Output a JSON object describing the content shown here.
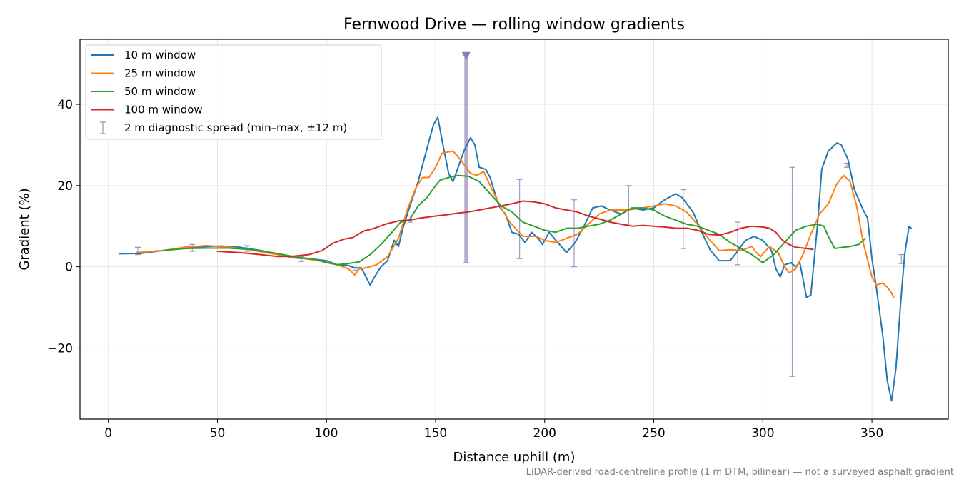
{
  "chart_data": {
    "type": "line",
    "title": "Fernwood Drive — rolling window gradients",
    "xlabel": "Distance uphill (m)",
    "ylabel": "Gradient (%)",
    "xlim": [
      -13,
      385
    ],
    "ylim": [
      -37.5,
      56
    ],
    "xticks": [
      0,
      50,
      100,
      150,
      200,
      250,
      300,
      350
    ],
    "yticks": [
      -20,
      0,
      20,
      40
    ],
    "xtick_labels": [
      "0",
      "50",
      "100",
      "150",
      "200",
      "250",
      "300",
      "350"
    ],
    "ytick_labels": [
      "−20",
      "0",
      "20",
      "40"
    ],
    "grid": true,
    "legend_position": "upper left",
    "footnote": "LiDAR-derived road-centreline profile (1 m DTM, bilinear) — not a surveyed asphalt gradient",
    "series": [
      {
        "name": "10 m window",
        "color": "#1f77b4",
        "points": [
          [
            5,
            3.2
          ],
          [
            15,
            3.3
          ],
          [
            25,
            4.0
          ],
          [
            35,
            4.6
          ],
          [
            45,
            5.0
          ],
          [
            52,
            5.1
          ],
          [
            60,
            4.8
          ],
          [
            70,
            4.0
          ],
          [
            78,
            3.0
          ],
          [
            85,
            2.2
          ],
          [
            95,
            1.8
          ],
          [
            100,
            1.5
          ],
          [
            105,
            0.5
          ],
          [
            110,
            0.3
          ],
          [
            113,
            -0.3
          ],
          [
            116,
            -0.3
          ],
          [
            120,
            -4.5
          ],
          [
            122,
            -2.5
          ],
          [
            125,
            0.0
          ],
          [
            128,
            1.5
          ],
          [
            131,
            6.5
          ],
          [
            133,
            5.0
          ],
          [
            135,
            9.5
          ],
          [
            138,
            14.5
          ],
          [
            142,
            21.0
          ],
          [
            146,
            29.0
          ],
          [
            149,
            35.0
          ],
          [
            151,
            36.8
          ],
          [
            153,
            31.0
          ],
          [
            156,
            23.0
          ],
          [
            158,
            21.0
          ],
          [
            160,
            24.0
          ],
          [
            163,
            28.5
          ],
          [
            166,
            31.8
          ],
          [
            168,
            30.0
          ],
          [
            170,
            24.5
          ],
          [
            173,
            24.0
          ],
          [
            175,
            22.0
          ],
          [
            179,
            15.0
          ],
          [
            182,
            13.0
          ],
          [
            185,
            8.5
          ],
          [
            188,
            8.0
          ],
          [
            191,
            6.0
          ],
          [
            194,
            8.5
          ],
          [
            197,
            7.0
          ],
          [
            199,
            5.5
          ],
          [
            202,
            8.5
          ],
          [
            206,
            6.0
          ],
          [
            210,
            3.5
          ],
          [
            214,
            6.0
          ],
          [
            218,
            10.0
          ],
          [
            222,
            14.5
          ],
          [
            226,
            15.0
          ],
          [
            230,
            14.0
          ],
          [
            235,
            13.0
          ],
          [
            240,
            14.5
          ],
          [
            245,
            14.0
          ],
          [
            250,
            14.5
          ],
          [
            255,
            16.5
          ],
          [
            260,
            18.0
          ],
          [
            263,
            17.0
          ],
          [
            268,
            13.5
          ],
          [
            272,
            8.5
          ],
          [
            276,
            4.0
          ],
          [
            280,
            1.5
          ],
          [
            285,
            1.5
          ],
          [
            288,
            3.5
          ],
          [
            292,
            6.5
          ],
          [
            296,
            7.5
          ],
          [
            300,
            6.5
          ],
          [
            304,
            4.0
          ],
          [
            306,
            -0.5
          ],
          [
            308,
            -2.5
          ],
          [
            310,
            0.5
          ],
          [
            313,
            1.0
          ],
          [
            315,
            0.0
          ],
          [
            317,
            1.0
          ],
          [
            320,
            -7.5
          ],
          [
            322,
            -7.0
          ],
          [
            325,
            10.0
          ],
          [
            327,
            24.0
          ],
          [
            330,
            28.5
          ],
          [
            334,
            30.5
          ],
          [
            336,
            30.0
          ],
          [
            339,
            26.5
          ],
          [
            342,
            19.0
          ],
          [
            346,
            14.0
          ],
          [
            348,
            12.0
          ],
          [
            350,
            2.0
          ],
          [
            352,
            -5.0
          ],
          [
            355,
            -17.0
          ],
          [
            357,
            -28.0
          ],
          [
            359,
            -33.0
          ],
          [
            361,
            -25.0
          ],
          [
            363,
            -10.0
          ],
          [
            365,
            3.0
          ],
          [
            367,
            10.0
          ],
          [
            368,
            9.5
          ]
        ]
      },
      {
        "name": "25 m window",
        "color": "#ff7f0e",
        "points": [
          [
            13,
            3.5
          ],
          [
            25,
            4.0
          ],
          [
            35,
            4.8
          ],
          [
            45,
            5.2
          ],
          [
            55,
            4.8
          ],
          [
            65,
            4.2
          ],
          [
            75,
            3.2
          ],
          [
            85,
            2.4
          ],
          [
            95,
            1.6
          ],
          [
            100,
            1.2
          ],
          [
            105,
            0.5
          ],
          [
            110,
            -0.5
          ],
          [
            113,
            -2.0
          ],
          [
            115,
            -0.5
          ],
          [
            118,
            -0.3
          ],
          [
            123,
            0.5
          ],
          [
            128,
            2.5
          ],
          [
            133,
            7.0
          ],
          [
            137,
            14.0
          ],
          [
            141,
            19.5
          ],
          [
            144,
            22.0
          ],
          [
            147,
            22.0
          ],
          [
            150,
            24.5
          ],
          [
            153,
            28.0
          ],
          [
            158,
            28.5
          ],
          [
            162,
            26.0
          ],
          [
            166,
            23.0
          ],
          [
            169,
            22.5
          ],
          [
            172,
            23.5
          ],
          [
            175,
            20.0
          ],
          [
            180,
            14.5
          ],
          [
            184,
            11.0
          ],
          [
            190,
            7.5
          ],
          [
            196,
            7.5
          ],
          [
            200,
            6.5
          ],
          [
            205,
            6.0
          ],
          [
            210,
            7.0
          ],
          [
            215,
            8.0
          ],
          [
            220,
            10.5
          ],
          [
            225,
            13.0
          ],
          [
            230,
            14.0
          ],
          [
            238,
            14.0
          ],
          [
            245,
            14.5
          ],
          [
            250,
            15.0
          ],
          [
            255,
            15.5
          ],
          [
            260,
            15.0
          ],
          [
            265,
            13.5
          ],
          [
            270,
            10.5
          ],
          [
            275,
            7.0
          ],
          [
            280,
            4.0
          ],
          [
            285,
            4.2
          ],
          [
            290,
            4.0
          ],
          [
            295,
            5.0
          ],
          [
            297,
            3.5
          ],
          [
            299,
            2.5
          ],
          [
            303,
            5.0
          ],
          [
            307,
            3.5
          ],
          [
            310,
            0.0
          ],
          [
            312,
            -1.5
          ],
          [
            315,
            -0.5
          ],
          [
            318,
            2.5
          ],
          [
            322,
            8.0
          ],
          [
            326,
            13.0
          ],
          [
            330,
            15.5
          ],
          [
            334,
            20.5
          ],
          [
            337,
            22.5
          ],
          [
            340,
            21.0
          ],
          [
            343,
            15.0
          ],
          [
            346,
            6.0
          ],
          [
            350,
            -2.5
          ],
          [
            352,
            -4.5
          ],
          [
            355,
            -4.0
          ],
          [
            357,
            -5.0
          ],
          [
            359,
            -6.5
          ],
          [
            360,
            -7.5
          ]
        ]
      },
      {
        "name": "50 m window",
        "color": "#2ca02c",
        "points": [
          [
            25,
            4.0
          ],
          [
            35,
            4.5
          ],
          [
            45,
            4.6
          ],
          [
            55,
            4.6
          ],
          [
            65,
            4.3
          ],
          [
            75,
            3.5
          ],
          [
            85,
            2.5
          ],
          [
            95,
            1.8
          ],
          [
            100,
            1.0
          ],
          [
            105,
            0.5
          ],
          [
            110,
            0.8
          ],
          [
            115,
            1.2
          ],
          [
            120,
            3.0
          ],
          [
            125,
            5.5
          ],
          [
            130,
            8.5
          ],
          [
            134,
            11.0
          ],
          [
            138,
            11.5
          ],
          [
            142,
            15.0
          ],
          [
            146,
            17.0
          ],
          [
            150,
            20.0
          ],
          [
            152,
            21.3
          ],
          [
            156,
            22.0
          ],
          [
            160,
            22.5
          ],
          [
            165,
            22.3
          ],
          [
            170,
            21.0
          ],
          [
            175,
            18.0
          ],
          [
            180,
            15.0
          ],
          [
            185,
            13.5
          ],
          [
            190,
            11.0
          ],
          [
            195,
            10.0
          ],
          [
            200,
            9.0
          ],
          [
            205,
            8.5
          ],
          [
            210,
            9.5
          ],
          [
            215,
            9.5
          ],
          [
            220,
            10.0
          ],
          [
            225,
            10.5
          ],
          [
            230,
            11.5
          ],
          [
            235,
            13.0
          ],
          [
            240,
            14.5
          ],
          [
            245,
            14.5
          ],
          [
            250,
            14.0
          ],
          [
            255,
            12.5
          ],
          [
            260,
            11.5
          ],
          [
            265,
            10.5
          ],
          [
            270,
            10.0
          ],
          [
            275,
            9.0
          ],
          [
            280,
            8.0
          ],
          [
            285,
            6.0
          ],
          [
            290,
            4.5
          ],
          [
            295,
            3.0
          ],
          [
            300,
            1.0
          ],
          [
            305,
            3.0
          ],
          [
            310,
            6.0
          ],
          [
            315,
            9.0
          ],
          [
            320,
            10.0
          ],
          [
            325,
            10.5
          ],
          [
            328,
            10.0
          ],
          [
            330,
            7.5
          ],
          [
            333,
            4.5
          ],
          [
            337,
            4.8
          ],
          [
            340,
            5.0
          ],
          [
            344,
            5.5
          ],
          [
            347,
            7.0
          ]
        ]
      },
      {
        "name": "100 m window",
        "color": "#d62728",
        "points": [
          [
            50,
            3.8
          ],
          [
            60,
            3.5
          ],
          [
            70,
            3.0
          ],
          [
            78,
            2.5
          ],
          [
            85,
            2.6
          ],
          [
            92,
            3.0
          ],
          [
            98,
            4.0
          ],
          [
            103,
            5.8
          ],
          [
            108,
            6.8
          ],
          [
            112,
            7.2
          ],
          [
            117,
            8.8
          ],
          [
            122,
            9.5
          ],
          [
            127,
            10.5
          ],
          [
            133,
            11.3
          ],
          [
            138,
            11.5
          ],
          [
            143,
            12.0
          ],
          [
            150,
            12.5
          ],
          [
            155,
            12.8
          ],
          [
            160,
            13.2
          ],
          [
            165,
            13.5
          ],
          [
            170,
            14.0
          ],
          [
            175,
            14.5
          ],
          [
            180,
            15.0
          ],
          [
            185,
            15.5
          ],
          [
            190,
            16.2
          ],
          [
            195,
            16.0
          ],
          [
            200,
            15.5
          ],
          [
            205,
            14.5
          ],
          [
            210,
            14.0
          ],
          [
            215,
            13.5
          ],
          [
            220,
            12.5
          ],
          [
            225,
            11.8
          ],
          [
            230,
            11.0
          ],
          [
            235,
            10.5
          ],
          [
            240,
            10.0
          ],
          [
            245,
            10.2
          ],
          [
            250,
            10.0
          ],
          [
            255,
            9.8
          ],
          [
            260,
            9.5
          ],
          [
            265,
            9.5
          ],
          [
            270,
            9.0
          ],
          [
            275,
            8.0
          ],
          [
            280,
            7.8
          ],
          [
            285,
            8.5
          ],
          [
            290,
            9.5
          ],
          [
            295,
            10.0
          ],
          [
            300,
            9.8
          ],
          [
            303,
            9.5
          ],
          [
            306,
            8.5
          ],
          [
            309,
            6.5
          ],
          [
            312,
            5.5
          ],
          [
            315,
            4.8
          ],
          [
            320,
            4.5
          ],
          [
            323,
            4.3
          ]
        ]
      }
    ],
    "errorbars": {
      "name": "2 m diagnostic spread (min–max, ±12 m)",
      "color": "#9b8fbf",
      "points": [
        {
          "x": 13.5,
          "low": 3.0,
          "high": 4.8
        },
        {
          "x": 38.5,
          "low": 3.8,
          "high": 5.5
        },
        {
          "x": 63.5,
          "low": 3.8,
          "high": 5.2
        },
        {
          "x": 88.5,
          "low": 1.3,
          "high": 2.5
        },
        {
          "x": 113.5,
          "low": -0.8,
          "high": 1.0
        },
        {
          "x": 138.5,
          "low": 11.0,
          "high": 12.5
        },
        {
          "x": 164,
          "low": 1.0,
          "high": 52.0,
          "clipped": true
        },
        {
          "x": 188.5,
          "low": 2.0,
          "high": 21.5
        },
        {
          "x": 213.5,
          "low": 0.0,
          "high": 16.5
        },
        {
          "x": 238.5,
          "low": 10.5,
          "high": 20.0
        },
        {
          "x": 263.5,
          "low": 4.5,
          "high": 19.0
        },
        {
          "x": 288.5,
          "low": 0.5,
          "high": 11.0
        },
        {
          "x": 313.5,
          "low": -27.0,
          "high": 24.5
        },
        {
          "x": 338.5,
          "low": 24.5,
          "high": 25.5
        },
        {
          "x": 363.5,
          "low": 0.8,
          "high": 3.0
        }
      ]
    }
  }
}
